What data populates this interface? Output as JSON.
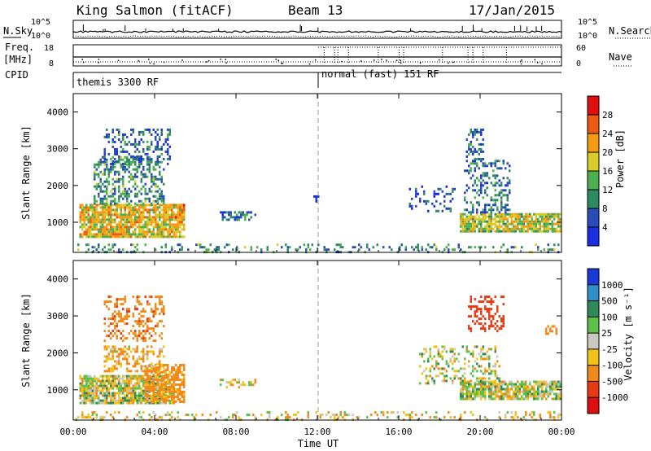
{
  "header": {
    "station": "King Salmon (fitACF)",
    "beam": "Beam 13",
    "date": "17/Jan/2015"
  },
  "aux_labels": {
    "nsky": "N.Sky",
    "freq": "Freq.",
    "mhz": "[MHz]",
    "cpid": "CPID",
    "nsearch": "N.Search",
    "nave": "Nave",
    "noise_top": "10^5",
    "noise_bottom": "10^0",
    "freq_top": "18",
    "freq_bottom": "8",
    "nave_top": "60",
    "nave_bottom": "0"
  },
  "cpid_modes": [
    {
      "label": "themis 3300 RF",
      "start_hour": 0
    },
    {
      "label": "normal (fast) 151 RF",
      "start_hour": 12
    }
  ],
  "x_axis": {
    "label": "Time UT",
    "ticks": [
      "00:00",
      "04:00",
      "08:00",
      "12:00",
      "16:00",
      "20:00",
      "00:00"
    ],
    "range_hours": [
      0,
      24
    ]
  },
  "y_axis": {
    "label": "Slant Range [km]",
    "ticks": [
      "1000",
      "2000",
      "3000",
      "4000"
    ],
    "range_km": [
      180,
      4500
    ]
  },
  "power_colorbar": {
    "title": "Power [dB]",
    "tick_labels": [
      "4",
      "8",
      "12",
      "16",
      "20",
      "24",
      "28"
    ],
    "colors": [
      "#1a2fe0",
      "#2a4cb8",
      "#2e8a60",
      "#4cb050",
      "#d9cc2a",
      "#f59a14",
      "#ee5a12",
      "#e01010"
    ]
  },
  "velocity_colorbar": {
    "title": "Velocity [m s⁻¹]",
    "tick_labels": [
      "1000",
      "500",
      "100",
      "25",
      "-25",
      "-100",
      "-500",
      "-1000"
    ],
    "colors": [
      "#1a3ad6",
      "#2f8fc8",
      "#2f8a5a",
      "#5cc04a",
      "#c8c8c0",
      "#f0c21a",
      "#f08a1a",
      "#e83a14",
      "#dc1010"
    ]
  },
  "chart_data": [
    {
      "type": "heatmap",
      "title": "",
      "quantity": "Power",
      "unit": "dB",
      "xlabel": "Time UT",
      "ylabel": "Slant Range [km]",
      "xlim": [
        0,
        24
      ],
      "ylim": [
        180,
        4500
      ],
      "zlim": [
        0,
        30
      ],
      "regions": [
        {
          "t0": 0.3,
          "t1": 5.5,
          "r0": 600,
          "r1": 1500,
          "power_db": 18,
          "density": 0.85
        },
        {
          "t0": 1.0,
          "t1": 4.5,
          "r0": 1500,
          "r1": 2800,
          "power_db": 10,
          "density": 0.45
        },
        {
          "t0": 1.5,
          "t1": 4.8,
          "r0": 2600,
          "r1": 3550,
          "power_db": 6,
          "density": 0.35
        },
        {
          "t0": 5.0,
          "t1": 5.5,
          "r0": 900,
          "r1": 1500,
          "power_db": 22,
          "density": 0.7
        },
        {
          "t0": 7.2,
          "t1": 9.0,
          "r0": 1050,
          "r1": 1300,
          "power_db": 8,
          "density": 0.5
        },
        {
          "t0": 11.8,
          "t1": 12.2,
          "r0": 1600,
          "r1": 1800,
          "power_db": 5,
          "density": 0.3
        },
        {
          "t0": 19.0,
          "t1": 24.0,
          "r0": 750,
          "r1": 1250,
          "power_db": 16,
          "density": 0.85
        },
        {
          "t0": 19.2,
          "t1": 21.5,
          "r0": 1250,
          "r1": 2700,
          "power_db": 8,
          "density": 0.35
        },
        {
          "t0": 19.3,
          "t1": 20.2,
          "r0": 2700,
          "r1": 3550,
          "power_db": 7,
          "density": 0.35
        },
        {
          "t0": 16.5,
          "t1": 18.8,
          "r0": 1300,
          "r1": 2000,
          "power_db": 5,
          "density": 0.15
        },
        {
          "t0": 0.0,
          "t1": 24.0,
          "r0": 200,
          "r1": 420,
          "power_db": 10,
          "density": 0.22
        }
      ]
    },
    {
      "type": "heatmap",
      "title": "",
      "quantity": "Velocity",
      "unit": "m s⁻¹",
      "xlabel": "Time UT",
      "ylabel": "Slant Range [km]",
      "xlim": [
        0,
        24
      ],
      "ylim": [
        180,
        4500
      ],
      "zlim": [
        -1000,
        1000
      ],
      "regions": [
        {
          "t0": 0.3,
          "t1": 5.0,
          "r0": 650,
          "r1": 1400,
          "velocity": 0,
          "density": 0.85
        },
        {
          "t0": 3.5,
          "t1": 5.5,
          "r0": 700,
          "r1": 1700,
          "velocity": -200,
          "density": 0.75
        },
        {
          "t0": 1.5,
          "t1": 4.5,
          "r0": 1500,
          "r1": 2200,
          "velocity": -120,
          "density": 0.45
        },
        {
          "t0": 1.5,
          "t1": 4.5,
          "r0": 2300,
          "r1": 3550,
          "velocity": -400,
          "density": 0.35
        },
        {
          "t0": 7.2,
          "t1": 9.0,
          "r0": 1050,
          "r1": 1300,
          "velocity": -80,
          "density": 0.5
        },
        {
          "t0": 19.0,
          "t1": 24.0,
          "r0": 750,
          "r1": 1250,
          "velocity": 0,
          "density": 0.85
        },
        {
          "t0": 17.0,
          "t1": 21.0,
          "r0": 1200,
          "r1": 2200,
          "velocity": 0,
          "density": 0.3
        },
        {
          "t0": 19.4,
          "t1": 21.2,
          "r0": 2600,
          "r1": 3550,
          "velocity": -700,
          "density": 0.35
        },
        {
          "t0": 23.2,
          "t1": 23.8,
          "r0": 2500,
          "r1": 2750,
          "velocity": -300,
          "density": 0.5
        },
        {
          "t0": 0.0,
          "t1": 24.0,
          "r0": 200,
          "r1": 420,
          "velocity": -60,
          "density": 0.22
        }
      ]
    }
  ]
}
